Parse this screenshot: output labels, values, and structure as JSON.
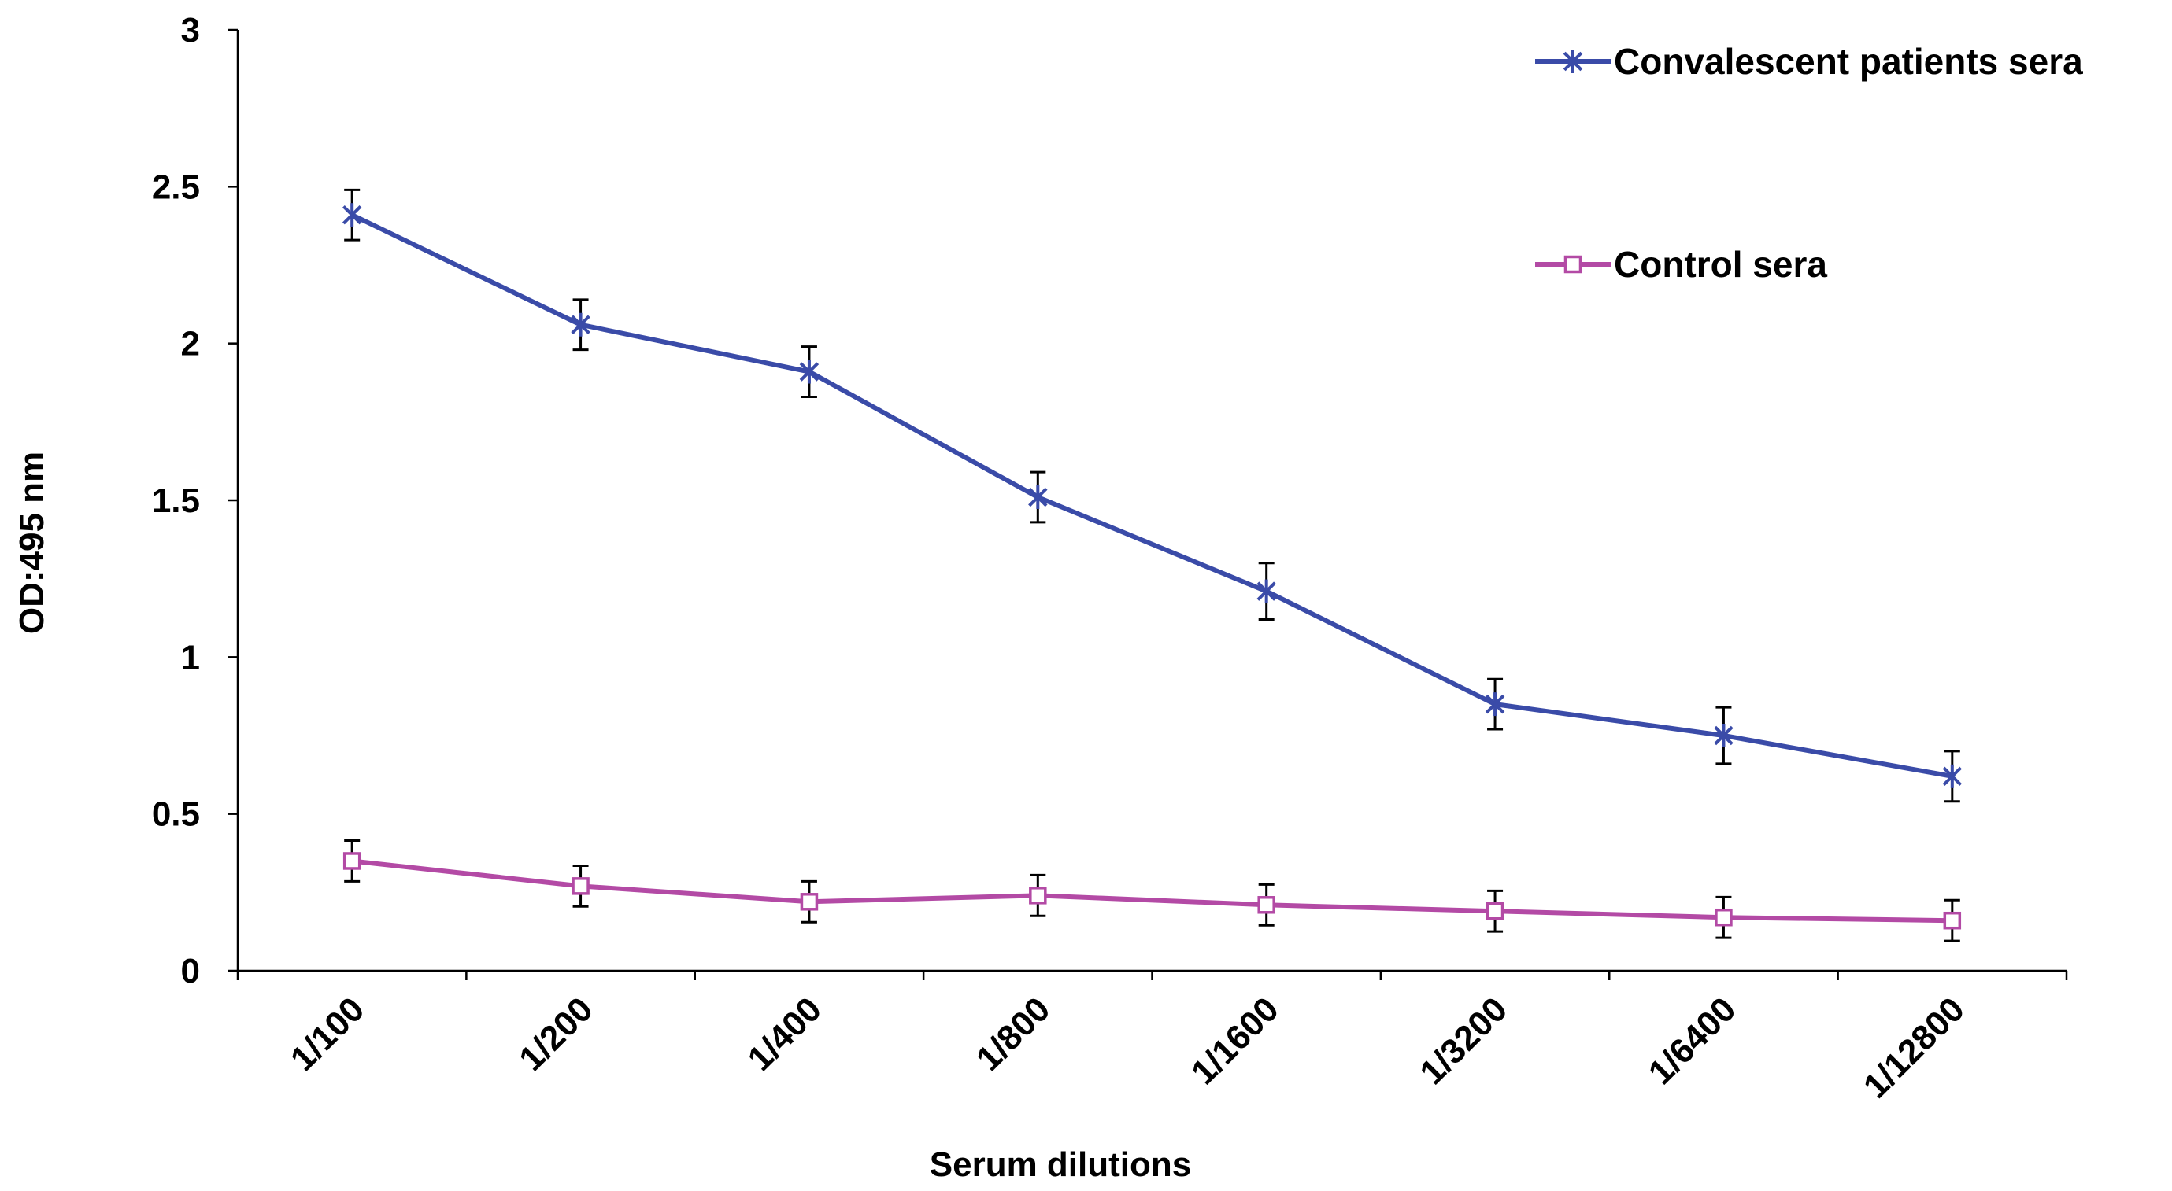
{
  "chart_data": {
    "type": "line",
    "title": "",
    "xlabel": "Serum dilutions",
    "ylabel": "OD:495 nm",
    "categories": [
      "1/100",
      "1/200",
      "1/400",
      "1/800",
      "1/1600",
      "1/3200",
      "1/6400",
      "1/12800"
    ],
    "ylim": [
      0,
      3
    ],
    "yticks": [
      "0",
      "0.5",
      "1",
      "1.5",
      "2",
      "2.5",
      "3"
    ],
    "grid": false,
    "legend_position": "top-right",
    "series": [
      {
        "name": "Convalescent patients sera",
        "color": "#3a4ba8",
        "marker": "asterisk",
        "values": [
          2.41,
          2.06,
          1.91,
          1.51,
          1.21,
          0.85,
          0.75,
          0.62
        ],
        "errors": [
          0.08,
          0.08,
          0.08,
          0.08,
          0.09,
          0.08,
          0.09,
          0.08
        ]
      },
      {
        "name": "Control sera",
        "color": "#b34aa5",
        "marker": "open-square",
        "values": [
          0.35,
          0.27,
          0.22,
          0.24,
          0.21,
          0.19,
          0.17,
          0.16
        ],
        "errors": [
          0.065,
          0.065,
          0.065,
          0.065,
          0.065,
          0.065,
          0.065,
          0.065
        ]
      }
    ]
  }
}
